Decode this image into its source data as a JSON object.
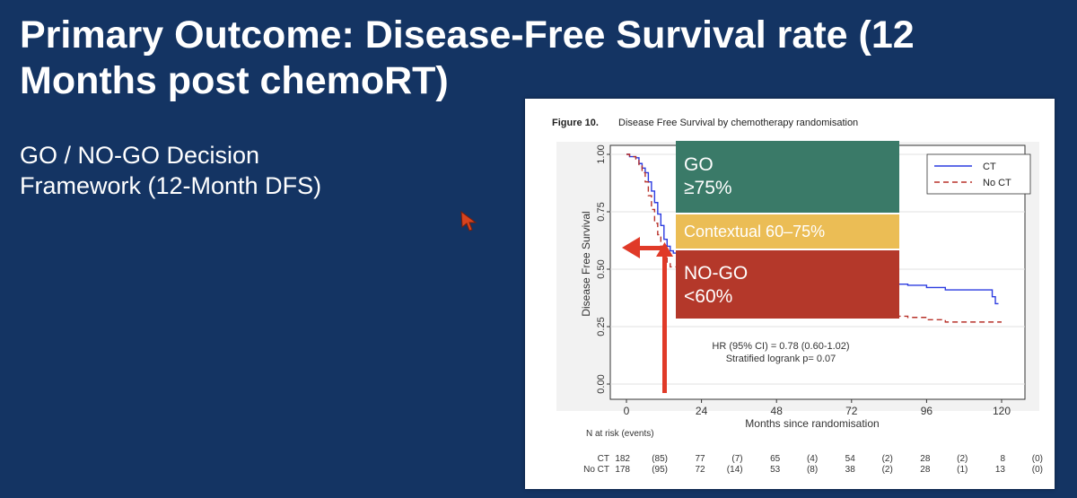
{
  "slide": {
    "title": "Primary Outcome: Disease-Free Survival rate (12 Months post chemoRT)",
    "subtitle_line1": "GO / NO-GO Decision",
    "subtitle_line2": "Framework (12-Month DFS)"
  },
  "figure": {
    "label": "Figure 10.",
    "caption": "Disease Free Survival by chemotherapy randomisation"
  },
  "decision_boxes": {
    "go": {
      "line1": "GO",
      "line2": "≥75%",
      "color": "#3a7a68"
    },
    "contextual": {
      "line1": "Contextual 60–75%",
      "color": "#ebbd55"
    },
    "nogo": {
      "line1": "NO-GO",
      "line2": "<60%",
      "color": "#b4382a"
    }
  },
  "arrow_color": "#e03a28",
  "chart_data": {
    "type": "line",
    "title": "Disease Free Survival by chemotherapy randomisation",
    "xlabel": "Months since randomisation",
    "ylabel": "Disease Free Survival",
    "xlim": [
      0,
      120
    ],
    "ylim": [
      0,
      1
    ],
    "x_ticks": [
      0,
      24,
      48,
      72,
      96,
      120
    ],
    "y_ticks": [
      0.0,
      0.25,
      0.5,
      0.75,
      1.0
    ],
    "y_tick_labels": [
      "0.00",
      "0.25",
      "0.50",
      "0.75",
      "1.00"
    ],
    "legend_position": "top-right",
    "series": [
      {
        "name": "CT",
        "color": "#2c3ce0",
        "dash": "solid",
        "points": [
          [
            0,
            1.0
          ],
          [
            1,
            0.99
          ],
          [
            3,
            0.985
          ],
          [
            4,
            0.96
          ],
          [
            5,
            0.94
          ],
          [
            6,
            0.92
          ],
          [
            7,
            0.88
          ],
          [
            8,
            0.84
          ],
          [
            9,
            0.79
          ],
          [
            10,
            0.74
          ],
          [
            11,
            0.69
          ],
          [
            12,
            0.63
          ],
          [
            13,
            0.6
          ],
          [
            14,
            0.58
          ],
          [
            15,
            0.57
          ],
          [
            18,
            0.55
          ],
          [
            21,
            0.54
          ],
          [
            24,
            0.53
          ],
          [
            30,
            0.51
          ],
          [
            36,
            0.5
          ],
          [
            42,
            0.49
          ],
          [
            48,
            0.48
          ],
          [
            54,
            0.47
          ],
          [
            60,
            0.46
          ],
          [
            66,
            0.45
          ],
          [
            72,
            0.44
          ],
          [
            78,
            0.44
          ],
          [
            84,
            0.435
          ],
          [
            90,
            0.43
          ],
          [
            96,
            0.42
          ],
          [
            102,
            0.41
          ],
          [
            108,
            0.41
          ],
          [
            114,
            0.41
          ],
          [
            116,
            0.41
          ],
          [
            117,
            0.38
          ],
          [
            118,
            0.35
          ],
          [
            119,
            0.35
          ]
        ]
      },
      {
        "name": "No CT",
        "color": "#b8322a",
        "dash": "dashed",
        "points": [
          [
            0,
            1.0
          ],
          [
            1,
            0.99
          ],
          [
            3,
            0.98
          ],
          [
            4,
            0.95
          ],
          [
            5,
            0.92
          ],
          [
            6,
            0.88
          ],
          [
            7,
            0.82
          ],
          [
            8,
            0.76
          ],
          [
            9,
            0.7
          ],
          [
            10,
            0.65
          ],
          [
            11,
            0.6
          ],
          [
            12,
            0.56
          ],
          [
            13,
            0.53
          ],
          [
            14,
            0.51
          ],
          [
            16,
            0.49
          ],
          [
            20,
            0.47
          ],
          [
            24,
            0.46
          ],
          [
            30,
            0.43
          ],
          [
            36,
            0.41
          ],
          [
            42,
            0.39
          ],
          [
            48,
            0.37
          ],
          [
            54,
            0.35
          ],
          [
            60,
            0.33
          ],
          [
            66,
            0.32
          ],
          [
            72,
            0.31
          ],
          [
            78,
            0.3
          ],
          [
            84,
            0.295
          ],
          [
            90,
            0.29
          ],
          [
            96,
            0.28
          ],
          [
            102,
            0.27
          ],
          [
            108,
            0.27
          ],
          [
            114,
            0.27
          ],
          [
            120,
            0.27
          ]
        ]
      }
    ],
    "annotations": {
      "hr_line": "HR (95% CI) = 0.78 (0.60-1.02)",
      "logrank_line": "Stratified logrank p= 0.07"
    },
    "risk_table": {
      "header": "N at risk (events)",
      "columns": [
        0,
        24,
        48,
        72,
        96,
        120
      ],
      "rows": [
        {
          "name": "CT",
          "n": [
            "182",
            "77",
            "65",
            "54",
            "28",
            "8"
          ],
          "events": [
            "(85)",
            "(7)",
            "(4)",
            "(2)",
            "(2)",
            "(0)"
          ]
        },
        {
          "name": "No CT",
          "n": [
            "178",
            "72",
            "53",
            "38",
            "28",
            "13"
          ],
          "events": [
            "(95)",
            "(14)",
            "(8)",
            "(2)",
            "(1)",
            "(0)"
          ]
        }
      ]
    }
  }
}
